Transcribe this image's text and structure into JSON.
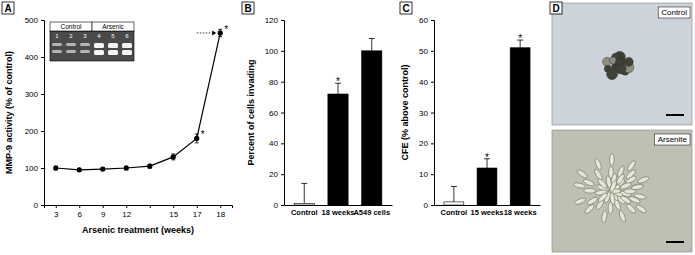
{
  "chart_data": [
    {
      "type": "line",
      "title": "A",
      "xlabel": "Arsenic treatment (weeks)",
      "ylabel": "MMP-9 activity (% of control)",
      "categories": [
        "3",
        "6",
        "9",
        "12",
        null,
        "15",
        "17",
        "18"
      ],
      "values": [
        100,
        95,
        97,
        100,
        105,
        130,
        180,
        465
      ],
      "errors": [
        5,
        4,
        4,
        5,
        5,
        8,
        12,
        10
      ],
      "color": "#000000",
      "marker": "circle",
      "line_style": "solid",
      "ylim": [
        0,
        500
      ],
      "yticks": [
        0,
        100,
        200,
        300,
        400,
        500
      ],
      "annotations": [
        {
          "index": 6,
          "text": "*"
        },
        {
          "index": 7,
          "text": "*"
        }
      ],
      "inset": {
        "groups": [
          {
            "label": "Control",
            "lanes": [
              "1",
              "2",
              "3"
            ]
          },
          {
            "label": "Arsenic",
            "lanes": [
              "4",
              "5",
              "6"
            ]
          }
        ]
      }
    },
    {
      "type": "bar",
      "title": "B",
      "ylabel": "Percent of cells invading",
      "categories": [
        "Control",
        "18 weeks",
        "A549 cells"
      ],
      "values": [
        1,
        72,
        100
      ],
      "errors": [
        13,
        7,
        8
      ],
      "colors": [
        "#ffffff",
        "#000000",
        "#000000"
      ],
      "ylim": [
        0,
        120
      ],
      "yticks": [
        0,
        20,
        40,
        60,
        80,
        100,
        120
      ],
      "annotations": [
        {
          "index": 1,
          "text": "*"
        }
      ]
    },
    {
      "type": "bar",
      "title": "C",
      "ylabel": "CFE (% above control)",
      "categories": [
        "Control",
        "15 weeks",
        "18 weeks"
      ],
      "values": [
        1,
        12,
        51
      ],
      "errors": [
        5,
        3,
        2.5
      ],
      "colors": [
        "#ffffff",
        "#000000",
        "#000000"
      ],
      "ylim": [
        0,
        60
      ],
      "yticks": [
        0,
        10,
        20,
        30,
        40,
        50,
        60
      ],
      "annotations": [
        {
          "index": 1,
          "text": "*"
        },
        {
          "index": 2,
          "text": "*"
        }
      ]
    },
    {
      "type": "image",
      "title": "D",
      "images": [
        {
          "label": "Control"
        },
        {
          "label": "Arsenite"
        }
      ]
    }
  ]
}
